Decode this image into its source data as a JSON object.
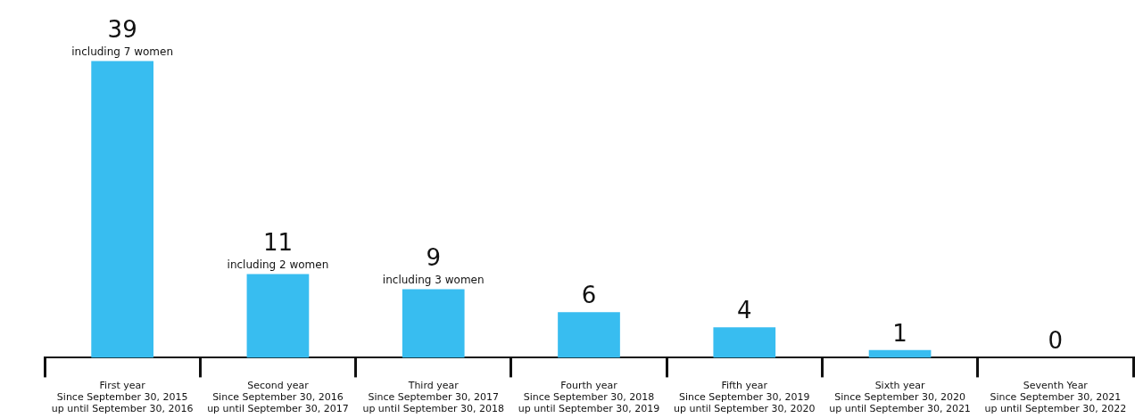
{
  "chart_data": {
    "type": "bar",
    "categories": [
      "First year\nSince September 30, 2015\nup until September 30, 2016",
      "Second year\nSince September 30, 2016\nup until September 30, 2017",
      "Third year\nSince September 30, 2017\nup until September 30, 2018",
      "Fourth year\nSince September 30, 2018\nup until September 30, 2019",
      "Fifth year\nSince September 30, 2019\nup until September 30, 2020",
      "Sixth year\nSince September 30, 2020\nup until September 30, 2021",
      "Seventh Year\nSince September 30, 2021\nup until September 30, 2022"
    ],
    "values": [
      39,
      11,
      9,
      6,
      4,
      1,
      0
    ],
    "color": "#38bdf0",
    "data_labels": true,
    "annotations": [
      {
        "text": "including 7 women",
        "x": "First year\nSince September 30, 2015\nup until September 30, 2016",
        "y": 39
      },
      {
        "text": "including 2 women",
        "x": "Second year\nSince September 30, 2016\nup until September 30, 2017",
        "y": 11
      },
      {
        "text": "including 3 women",
        "x": "Third year\nSince September 30, 2017\nup until September 30, 2018",
        "y": 9
      }
    ],
    "grid": false,
    "legend": false,
    "tick_labels": "x"
  }
}
